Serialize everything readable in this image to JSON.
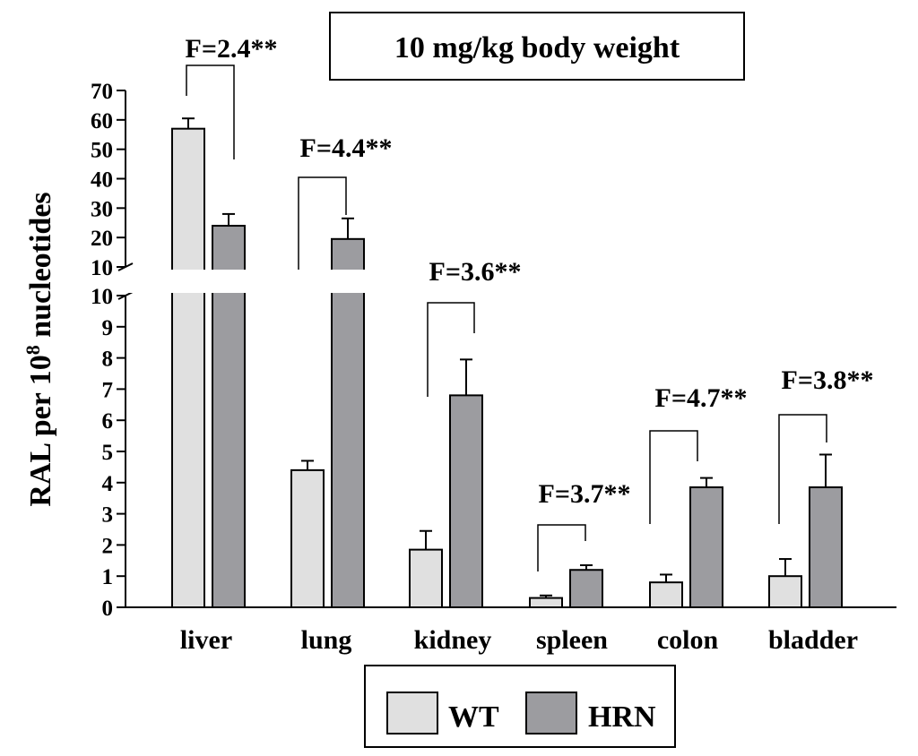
{
  "chart_data": {
    "type": "bar",
    "title": "10 mg/kg body weight",
    "ylabel_main": "RAL per 10",
    "ylabel_sup": "8",
    "ylabel_tail": " nucleotides",
    "categories": [
      "liver",
      "lung",
      "kidney",
      "spleen",
      "colon",
      "bladder"
    ],
    "series": [
      {
        "name": "WT",
        "color": "#e0e0e0",
        "values": [
          57,
          4.4,
          1.85,
          0.3,
          0.8,
          1.0
        ],
        "errors": [
          3.5,
          0.3,
          0.6,
          0.08,
          0.25,
          0.55
        ]
      },
      {
        "name": "HRN",
        "color": "#9c9ca0",
        "values": [
          24,
          19.5,
          6.8,
          1.2,
          3.85,
          3.85
        ],
        "errors": [
          4,
          7,
          1.15,
          0.15,
          0.3,
          1.05
        ]
      }
    ],
    "axis_break": true,
    "ylim_lower": [
      0,
      10
    ],
    "ylim_upper": [
      10,
      70
    ],
    "yticks_lower": [
      "0",
      "1",
      "2",
      "3",
      "4",
      "5",
      "6",
      "7",
      "8",
      "9",
      "10"
    ],
    "yticks_upper": [
      "10",
      "20",
      "30",
      "40",
      "50",
      "60",
      "70"
    ],
    "annotations": [
      "F=2.4**",
      "F=4.4**",
      "F=3.6**",
      "F=3.7**",
      "F=4.7**",
      "F=3.8**"
    ],
    "legend_position": "bottom-center"
  }
}
